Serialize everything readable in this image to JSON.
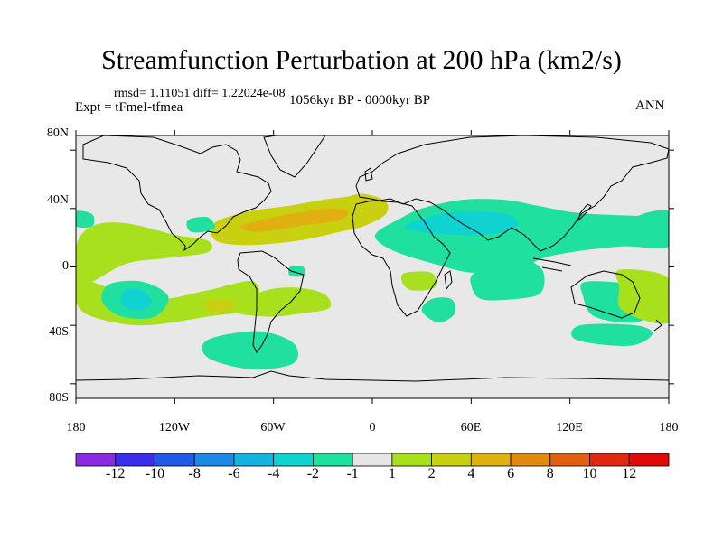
{
  "chart_data": {
    "type": "heatmap",
    "title": "Streamfunction Perturbation at 200 hPa (km2/s)",
    "stats_text": "rmsd= 1.11051 diff= 1.22024e-08",
    "experiment_text": "Expt = tFmeI-tfmea",
    "period_text": "1056kyr BP - 0000kyr BP",
    "season_text": "ANN",
    "projection": "cylindrical equidistant",
    "xlim": [
      -180,
      180
    ],
    "ylim": [
      -90,
      90
    ],
    "y_ticks": [
      {
        "value": 80,
        "label": "80N"
      },
      {
        "value": 40,
        "label": "40N"
      },
      {
        "value": 0,
        "label": "0"
      },
      {
        "value": -40,
        "label": "40S"
      },
      {
        "value": -80,
        "label": "80S"
      }
    ],
    "x_ticks": [
      {
        "value": -180,
        "label": "180"
      },
      {
        "value": -120,
        "label": "120W"
      },
      {
        "value": -60,
        "label": "60W"
      },
      {
        "value": 0,
        "label": "0"
      },
      {
        "value": 60,
        "label": "60E"
      },
      {
        "value": 120,
        "label": "120E"
      },
      {
        "value": 180,
        "label": "180"
      }
    ],
    "colorbar": {
      "levels": [
        "-12",
        "-10",
        "-8",
        "-6",
        "-4",
        "-2",
        "-1",
        "1",
        "2",
        "4",
        "6",
        "8",
        "10",
        "12"
      ],
      "colors": [
        "#8a2be2",
        "#3a2ee8",
        "#1f5be6",
        "#1a8ae6",
        "#14b4e0",
        "#10d2d0",
        "#20e0a0",
        "#e6e6e6",
        "#a8e01e",
        "#c8d010",
        "#e0b010",
        "#e08a10",
        "#e06010",
        "#e02a10",
        "#e00a0a"
      ]
    },
    "anomaly_regions": [
      {
        "name": "n-atlantic-africa-positive",
        "level": 2,
        "lon_lat": [
          [
            -96,
            30
          ],
          [
            -75,
            38
          ],
          [
            -50,
            42
          ],
          [
            -30,
            46
          ],
          [
            -16,
            48
          ],
          [
            -5,
            50
          ],
          [
            8,
            45
          ],
          [
            8,
            36
          ],
          [
            -5,
            28
          ],
          [
            -20,
            24
          ],
          [
            -45,
            18
          ],
          [
            -75,
            15
          ],
          [
            -95,
            18
          ]
        ]
      },
      {
        "name": "n-atlantic-core-positive",
        "level": 4,
        "lon_lat": [
          [
            -80,
            28
          ],
          [
            -60,
            34
          ],
          [
            -40,
            38
          ],
          [
            -25,
            40
          ],
          [
            -15,
            38
          ],
          [
            -20,
            32
          ],
          [
            -45,
            28
          ],
          [
            -70,
            24
          ]
        ]
      },
      {
        "name": "asia-negative",
        "level": -1,
        "lon_lat": [
          [
            3,
            24
          ],
          [
            15,
            32
          ],
          [
            30,
            40
          ],
          [
            55,
            46
          ],
          [
            80,
            46
          ],
          [
            100,
            42
          ],
          [
            125,
            37
          ],
          [
            160,
            35
          ],
          [
            180,
            34
          ],
          [
            180,
            14
          ],
          [
            150,
            14
          ],
          [
            110,
            8
          ],
          [
            90,
            0
          ],
          [
            62,
            -4
          ],
          [
            38,
            2
          ],
          [
            15,
            10
          ],
          [
            3,
            18
          ]
        ]
      },
      {
        "name": "asia-core-negative",
        "level": -2,
        "lon_lat": [
          [
            20,
            28
          ],
          [
            40,
            36
          ],
          [
            60,
            38
          ],
          [
            82,
            36
          ],
          [
            88,
            28
          ],
          [
            70,
            22
          ],
          [
            50,
            22
          ],
          [
            30,
            24
          ]
        ]
      },
      {
        "name": "indian-ocean-negative",
        "level": -1,
        "lon_lat": [
          [
            62,
            -4
          ],
          [
            80,
            8
          ],
          [
            96,
            4
          ],
          [
            104,
            -4
          ],
          [
            102,
            -18
          ],
          [
            86,
            -22
          ],
          [
            66,
            -22
          ],
          [
            60,
            -12
          ]
        ]
      },
      {
        "name": "w-pacific-subtropical-positive",
        "level": 1,
        "lon_lat": [
          [
            -180,
            14
          ],
          [
            -170,
            28
          ],
          [
            -150,
            30
          ],
          [
            -120,
            22
          ],
          [
            -100,
            18
          ],
          [
            -100,
            10
          ],
          [
            -125,
            6
          ],
          [
            -150,
            2
          ],
          [
            -180,
            -14
          ]
        ]
      },
      {
        "name": "s-pacific-positive",
        "level": 1,
        "lon_lat": [
          [
            -180,
            -8
          ],
          [
            -160,
            -14
          ],
          [
            -130,
            -22
          ],
          [
            -100,
            -16
          ],
          [
            -72,
            -10
          ],
          [
            -72,
            -28
          ],
          [
            -100,
            -34
          ],
          [
            -140,
            -40
          ],
          [
            -170,
            -34
          ],
          [
            -180,
            -24
          ]
        ]
      },
      {
        "name": "s-pacific-negative",
        "level": -1,
        "lon_lat": [
          [
            -160,
            -12
          ],
          [
            -140,
            -10
          ],
          [
            -124,
            -20
          ],
          [
            -132,
            -34
          ],
          [
            -152,
            -34
          ],
          [
            -164,
            -24
          ]
        ]
      },
      {
        "name": "s-pacific-core-negative",
        "level": -2,
        "lon_lat": [
          [
            -150,
            -16
          ],
          [
            -140,
            -16
          ],
          [
            -134,
            -24
          ],
          [
            -142,
            -30
          ],
          [
            -152,
            -26
          ]
        ]
      },
      {
        "name": "s-america-positive-core",
        "level": 2,
        "lon_lat": [
          [
            -102,
            -24
          ],
          [
            -88,
            -22
          ],
          [
            -84,
            -28
          ],
          [
            -96,
            -32
          ]
        ]
      },
      {
        "name": "s-atlantic-positive",
        "level": 1,
        "lon_lat": [
          [
            -85,
            -30
          ],
          [
            -70,
            -18
          ],
          [
            -50,
            -14
          ],
          [
            -30,
            -18
          ],
          [
            -26,
            -28
          ],
          [
            -44,
            -32
          ],
          [
            -64,
            -34
          ]
        ]
      },
      {
        "name": "southern-ocean-negative",
        "level": -1,
        "lon_lat": [
          [
            -100,
            -50
          ],
          [
            -70,
            -44
          ],
          [
            -48,
            -52
          ],
          [
            -48,
            -66
          ],
          [
            -74,
            -70
          ],
          [
            -100,
            -62
          ]
        ]
      },
      {
        "name": "s-ocean-se-negative",
        "level": -1,
        "lon_lat": [
          [
            126,
            -40
          ],
          [
            160,
            -40
          ],
          [
            170,
            -46
          ],
          [
            156,
            -54
          ],
          [
            124,
            -50
          ]
        ]
      },
      {
        "name": "tasman-negative",
        "level": -1,
        "lon_lat": [
          [
            130,
            -10
          ],
          [
            165,
            -14
          ],
          [
            170,
            -28
          ],
          [
            160,
            -38
          ],
          [
            135,
            -34
          ],
          [
            128,
            -20
          ]
        ]
      },
      {
        "name": "c-pacific-positive",
        "level": 1,
        "lon_lat": [
          [
            150,
            -2
          ],
          [
            180,
            -8
          ],
          [
            180,
            -38
          ],
          [
            152,
            -30
          ],
          [
            150,
            -14
          ]
        ]
      },
      {
        "name": "africa-south-negative",
        "level": -1,
        "lon_lat": [
          [
            36,
            -22
          ],
          [
            48,
            -22
          ],
          [
            50,
            -32
          ],
          [
            40,
            -38
          ],
          [
            30,
            -30
          ]
        ]
      },
      {
        "name": "africa-west-positive",
        "level": 1,
        "lon_lat": [
          [
            20,
            -4
          ],
          [
            36,
            -4
          ],
          [
            38,
            -14
          ],
          [
            24,
            -16
          ],
          [
            18,
            -10
          ]
        ]
      },
      {
        "name": "mexico-negative",
        "level": -1,
        "lon_lat": [
          [
            -112,
            32
          ],
          [
            -100,
            34
          ],
          [
            -96,
            26
          ],
          [
            -110,
            24
          ]
        ]
      },
      {
        "name": "tropical-atlantic-negative",
        "level": -1,
        "lon_lat": [
          [
            -50,
            0
          ],
          [
            -42,
            0
          ],
          [
            -42,
            -6
          ],
          [
            -50,
            -6
          ]
        ]
      },
      {
        "name": "nw-pacific-negative",
        "level": -1,
        "lon_lat": [
          [
            160,
            34
          ],
          [
            180,
            38
          ],
          [
            180,
            18
          ],
          [
            160,
            22
          ]
        ]
      },
      {
        "name": "ne-pacific-negative",
        "level": -1,
        "lon_lat": [
          [
            -180,
            38
          ],
          [
            -170,
            36
          ],
          [
            -170,
            28
          ],
          [
            -180,
            28
          ]
        ]
      }
    ]
  }
}
